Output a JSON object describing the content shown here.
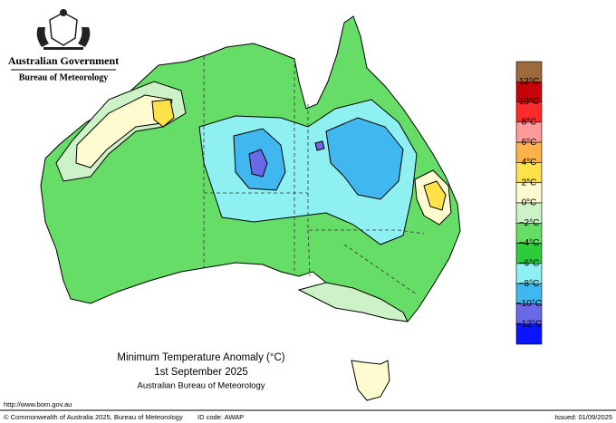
{
  "header": {
    "title": "Australian Government",
    "subtitle": "Bureau of Meteorology"
  },
  "map": {
    "title": "Minimum Temperature Anomaly (°C)",
    "date": "1st September 2025",
    "source": "Australian Bureau of Meteorology"
  },
  "legend": {
    "colors": [
      "#9c6a3c",
      "#c8000a",
      "#ff2a2a",
      "#ff9a9a",
      "#ffb24a",
      "#ffe24a",
      "#fffbd0",
      "#cdf2c8",
      "#66dd66",
      "#2ecc3a",
      "#8ef0f0",
      "#40b8ef",
      "#6a6ae8",
      "#0a14ff"
    ],
    "labels": [
      "12°C",
      "10°C",
      "8°C",
      "6°C",
      "4°C",
      "2°C",
      "0°C",
      "−2°C",
      "−4°C",
      "−6°C",
      "−8°C",
      "−10°C",
      "−12°C"
    ]
  },
  "footer": {
    "url": "http://www.bom.gov.au",
    "copyright": "© Commonwealth of Australia 2025, Bureau of Meteorology",
    "id_code": "ID code: AWAP",
    "issued": "Issued: 01/09/2025"
  }
}
